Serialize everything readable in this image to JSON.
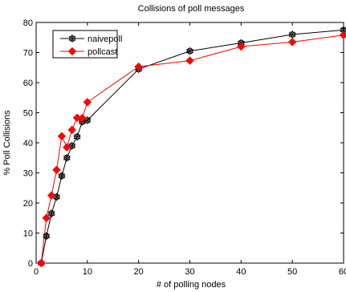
{
  "chart_data": {
    "type": "line",
    "title": "Collisions of poll messages",
    "xlabel": "# of polling nodes",
    "ylabel": "% Poll Collisions",
    "xlim": [
      0,
      60
    ],
    "ylim": [
      0,
      80
    ],
    "xticks": [
      0,
      10,
      20,
      30,
      40,
      50,
      60
    ],
    "yticks": [
      0,
      10,
      20,
      30,
      40,
      50,
      60,
      70,
      80
    ],
    "grid": false,
    "legend_position": "top-left",
    "series": [
      {
        "name": "naivepoll",
        "color": "#000000",
        "marker": "star-icon",
        "x": [
          1,
          2,
          3,
          4,
          5,
          6,
          7,
          8,
          9,
          10,
          20,
          30,
          40,
          50,
          60
        ],
        "y": [
          0,
          9,
          16.5,
          22,
          29,
          35,
          39,
          42,
          47,
          47.5,
          64.5,
          70.5,
          73.2,
          76,
          77.5
        ]
      },
      {
        "name": "pollcast",
        "color": "#ff0000",
        "marker": "diamond-icon",
        "x": [
          1,
          2,
          3,
          4,
          5,
          6,
          7,
          8,
          9,
          10,
          20,
          30,
          40,
          50,
          60
        ],
        "y": [
          0,
          15,
          22.5,
          31,
          42.2,
          38.5,
          44.3,
          48.3,
          48.2,
          53.5,
          65.3,
          67.3,
          72,
          73.5,
          75.8
        ]
      }
    ]
  }
}
